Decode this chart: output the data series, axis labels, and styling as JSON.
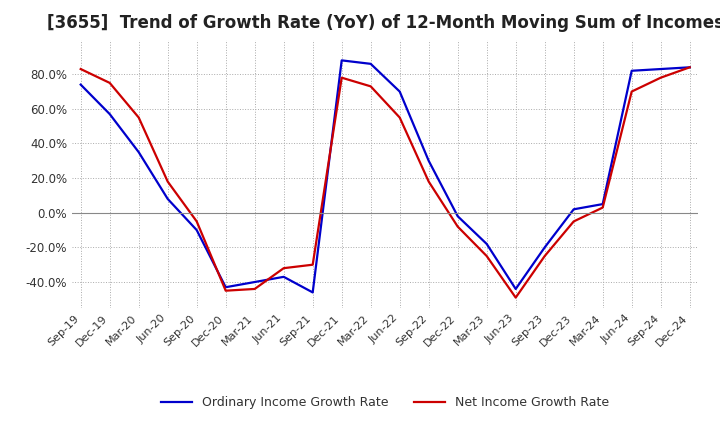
{
  "title": "[3655]  Trend of Growth Rate (YoY) of 12-Month Moving Sum of Incomes",
  "title_fontsize": 12,
  "ylim": [
    -55,
    100
  ],
  "yticks": [
    -40.0,
    -20.0,
    0.0,
    20.0,
    40.0,
    60.0,
    80.0
  ],
  "background_color": "#ffffff",
  "grid_color": "#aaaaaa",
  "legend_labels": [
    "Ordinary Income Growth Rate",
    "Net Income Growth Rate"
  ],
  "line_colors": [
    "#0000cc",
    "#cc0000"
  ],
  "x_labels": [
    "Sep-19",
    "Dec-19",
    "Mar-20",
    "Jun-20",
    "Sep-20",
    "Dec-20",
    "Mar-21",
    "Jun-21",
    "Sep-21",
    "Dec-21",
    "Mar-22",
    "Jun-22",
    "Sep-22",
    "Dec-22",
    "Mar-23",
    "Jun-23",
    "Sep-23",
    "Dec-23",
    "Mar-24",
    "Jun-24",
    "Sep-24",
    "Dec-24"
  ],
  "ordinary_income": [
    74,
    57,
    35,
    8,
    -10,
    -43,
    -40,
    -37,
    -46,
    88,
    86,
    70,
    30,
    -2,
    -18,
    -44,
    -20,
    2,
    5,
    82,
    83,
    84
  ],
  "net_income": [
    83,
    75,
    55,
    18,
    -5,
    -45,
    -44,
    -32,
    -30,
    78,
    73,
    55,
    18,
    -8,
    -25,
    -49,
    -25,
    -5,
    3,
    70,
    78,
    84
  ]
}
